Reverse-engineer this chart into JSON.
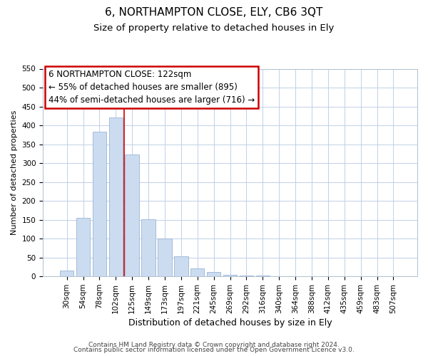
{
  "title": "6, NORTHAMPTON CLOSE, ELY, CB6 3QT",
  "subtitle": "Size of property relative to detached houses in Ely",
  "xlabel": "Distribution of detached houses by size in Ely",
  "ylabel": "Number of detached properties",
  "bar_labels": [
    "30sqm",
    "54sqm",
    "78sqm",
    "102sqm",
    "125sqm",
    "149sqm",
    "173sqm",
    "197sqm",
    "221sqm",
    "245sqm",
    "269sqm",
    "292sqm",
    "316sqm",
    "340sqm",
    "364sqm",
    "388sqm",
    "412sqm",
    "435sqm",
    "459sqm",
    "483sqm",
    "507sqm"
  ],
  "bar_heights": [
    15,
    155,
    383,
    420,
    322,
    152,
    100,
    54,
    21,
    11,
    4,
    3,
    2,
    1,
    1,
    1,
    0,
    1,
    0,
    0,
    1
  ],
  "bar_color": "#ccdcf0",
  "bar_edge_color": "#9ab4d4",
  "vline_x": 3.5,
  "vline_color": "#cc0000",
  "annotation_line1": "6 NORTHAMPTON CLOSE: 122sqm",
  "annotation_line2": "← 55% of detached houses are smaller (895)",
  "annotation_line3": "44% of semi-detached houses are larger (716) →",
  "ylim": [
    0,
    550
  ],
  "yticks": [
    0,
    50,
    100,
    150,
    200,
    250,
    300,
    350,
    400,
    450,
    500,
    550
  ],
  "footer_line1": "Contains HM Land Registry data © Crown copyright and database right 2024.",
  "footer_line2": "Contains public sector information licensed under the Open Government Licence v3.0.",
  "background_color": "#ffffff",
  "grid_color": "#c0d0e8",
  "title_fontsize": 11,
  "subtitle_fontsize": 9.5,
  "xlabel_fontsize": 9,
  "ylabel_fontsize": 8,
  "tick_fontsize": 7.5,
  "annotation_fontsize": 8.5,
  "footer_fontsize": 6.5
}
